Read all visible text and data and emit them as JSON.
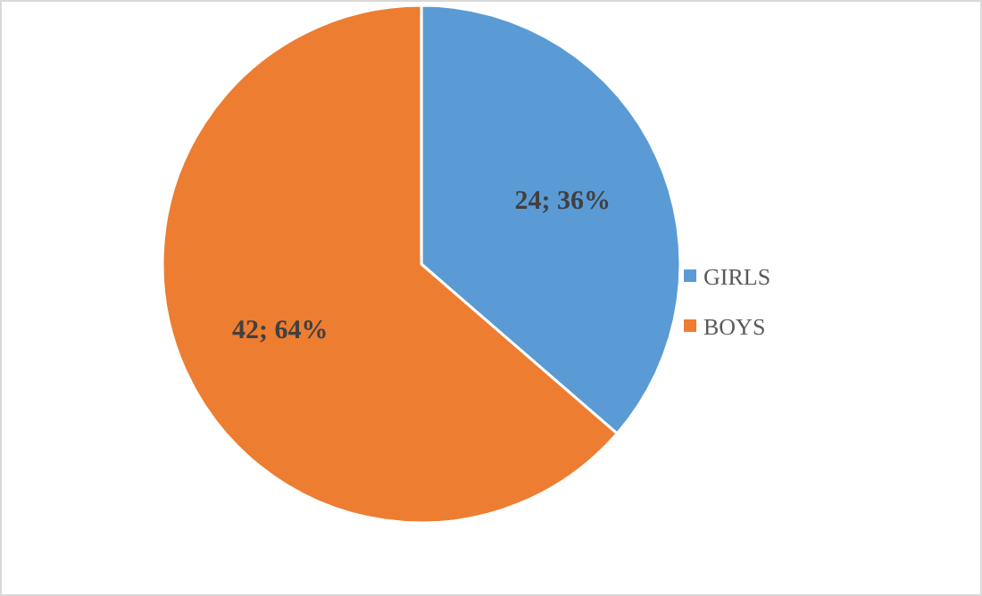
{
  "chart_data": {
    "type": "pie",
    "categories": [
      "GIRLS",
      "BOYS"
    ],
    "values": [
      24,
      42
    ],
    "colors": [
      "#5b9bd5",
      "#ed7d31"
    ],
    "value_labels": [
      "24; 36%",
      "42; 64%"
    ],
    "legend": "right"
  }
}
